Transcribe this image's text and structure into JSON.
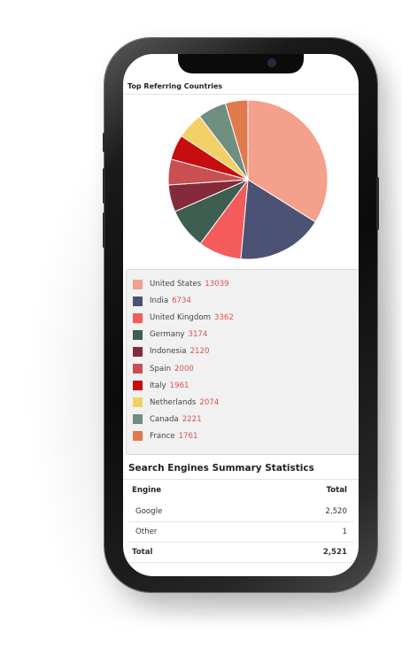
{
  "chart_data": {
    "type": "pie",
    "title": "Top Referring Countries",
    "categories": [
      "United States",
      "India",
      "United Kingdom",
      "Germany",
      "Indonesia",
      "Spain",
      "Italy",
      "Netherlands",
      "Canada",
      "France"
    ],
    "values": [
      13039,
      6734,
      3362,
      3174,
      2120,
      2000,
      1961,
      2074,
      2221,
      1761
    ],
    "colors": [
      "#f4a08c",
      "#4b5274",
      "#f45b5b",
      "#3e5e52",
      "#852a3a",
      "#c94f52",
      "#c70e0e",
      "#f2d065",
      "#6e8f7f",
      "#e07a4d"
    ],
    "legend": "below"
  },
  "search_engines": {
    "title": "Search Engines Summary Statistics",
    "headers": {
      "engine": "Engine",
      "total": "Total"
    },
    "rows": [
      {
        "engine": "Google",
        "total": "2,520"
      },
      {
        "engine": "Other",
        "total": "1"
      }
    ],
    "footer": {
      "engine": "Total",
      "total": "2,521"
    }
  }
}
